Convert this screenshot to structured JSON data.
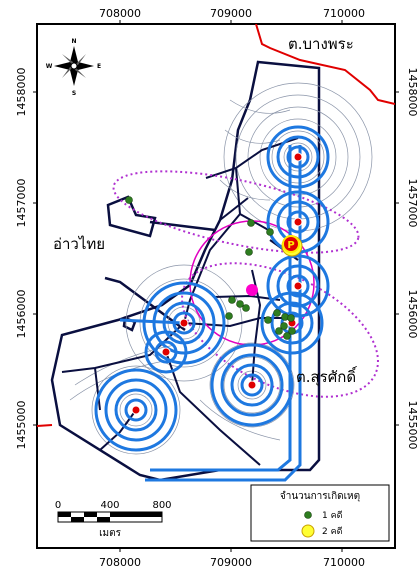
{
  "map": {
    "x_ticks": [
      "708000",
      "709000",
      "710000"
    ],
    "y_ticks": [
      "1458000",
      "1457000",
      "1456000",
      "1455000"
    ],
    "places": {
      "top_right": "ต.บางพระ",
      "left": "อ่าวไทย",
      "bottom_right": "ต.สุรศักดิ์"
    },
    "compass": {
      "n": "N",
      "s": "S",
      "e": "E",
      "w": "W"
    },
    "scale_bar": {
      "labels": [
        "0",
        "400",
        "800"
      ],
      "unit": "เมตร"
    },
    "legend": {
      "title": "จำนวนการเกิดเหตุ",
      "items": [
        {
          "label": "1 คดี",
          "color": "#2e7d20"
        },
        {
          "label": "2 คดี",
          "color": "#ffff33"
        }
      ]
    },
    "marker_letter": "P",
    "colors": {
      "route": "#1e78e0",
      "road": "#0a0f40",
      "boundary": "#e00000",
      "ellipse": "#b030d0",
      "station": "#e00000",
      "magenta_point": "#ff00cc"
    }
  }
}
